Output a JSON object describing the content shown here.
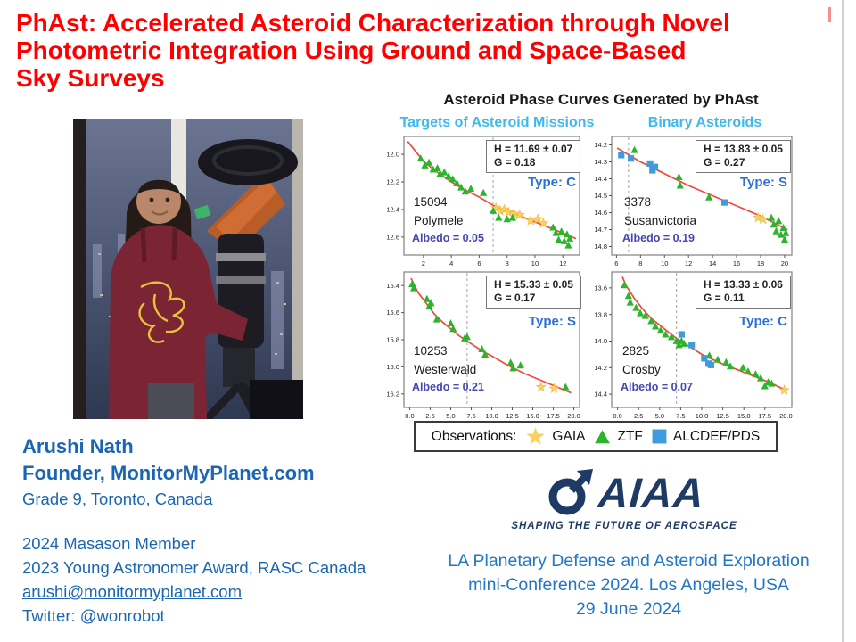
{
  "slide": {
    "title_lines": [
      "PhAst: Accelerated Asteroid Characterization through Novel",
      "Photometric Integration Using Ground and Space-Based",
      "Sky Surveys"
    ],
    "title_color": "#ff0000"
  },
  "author": {
    "name": "Arushi Nath",
    "role": "Founder, MonitorMyPlanet.com",
    "grade": "Grade 9, Toronto, Canada",
    "award_1": "2024 Masason Member",
    "award_2": "2023 Young Astronomer Award, RASC Canada",
    "email": "arushi@monitormyplanet.com",
    "twitter": "Twitter: @wonrobot",
    "text_color": "#1b66b3"
  },
  "charts": {
    "heading": "Asteroid Phase Curves Generated by PhAst",
    "column_left": "Targets of Asteroid Missions",
    "column_right": "Binary Asteroids",
    "column_color": "#3db9ef",
    "legend": {
      "label": "Observations:",
      "items": [
        {
          "label": "GAIA",
          "marker": "star"
        },
        {
          "label": "ZTF",
          "marker": "triangle"
        },
        {
          "label": "ALCDEF/PDS",
          "marker": "square"
        }
      ]
    }
  },
  "chart_data": {
    "type": "scatter",
    "colors": {
      "fit": "#f04a3e",
      "gaia": "#fad05f",
      "gaia_stroke": "#e9b83f",
      "ztf": "#2cb52c",
      "alcdef": "#3e9bdc",
      "dashed": "#ababab",
      "frame": "#8a8a8a"
    },
    "panels": [
      {
        "name_line1": "15094",
        "name_line2": "Polymele",
        "albedo_label": "Albedo = 0.05",
        "h_label": "H = 11.69 ± 0.07",
        "g_label": "G = 0.18",
        "type_label": "Type: C",
        "xlim": [
          0.6,
          13.2
        ],
        "ylim": [
          11.87,
          12.73
        ],
        "xticks": [
          2,
          4,
          6,
          8,
          10,
          12
        ],
        "xtick_decimals": 0,
        "yticks": [
          12.0,
          12.2,
          12.4,
          12.6
        ],
        "dash_x": 7,
        "curve": [
          [
            0.9,
            11.91
          ],
          [
            2,
            12.05
          ],
          [
            3,
            12.13
          ],
          [
            4,
            12.2
          ],
          [
            5,
            12.26
          ],
          [
            6,
            12.31
          ],
          [
            7,
            12.37
          ],
          [
            8,
            12.41
          ],
          [
            9,
            12.45
          ],
          [
            10,
            12.49
          ],
          [
            11,
            12.53
          ],
          [
            12,
            12.57
          ],
          [
            12.9,
            12.61
          ]
        ],
        "series": [
          {
            "name": "GAIA",
            "marker": "star",
            "points": [
              [
                7.2,
                12.39
              ],
              [
                7.5,
                12.41
              ],
              [
                7.8,
                12.4
              ],
              [
                8.1,
                12.42
              ],
              [
                8.5,
                12.43
              ],
              [
                8.9,
                12.44
              ],
              [
                9.7,
                12.48
              ],
              [
                10.2,
                12.47
              ],
              [
                10.6,
                12.5
              ]
            ]
          },
          {
            "name": "ZTF",
            "marker": "triangle",
            "points": [
              [
                1.8,
                12.03
              ],
              [
                2.1,
                12.08
              ],
              [
                2.4,
                12.06
              ],
              [
                2.7,
                12.11
              ],
              [
                3.0,
                12.1
              ],
              [
                3.2,
                12.14
              ],
              [
                3.5,
                12.13
              ],
              [
                3.8,
                12.16
              ],
              [
                4.1,
                12.18
              ],
              [
                4.4,
                12.21
              ],
              [
                4.7,
                12.24
              ],
              [
                5.0,
                12.27
              ],
              [
                5.4,
                12.25
              ],
              [
                6.3,
                12.28
              ],
              [
                7.0,
                12.41
              ],
              [
                7.4,
                12.46
              ],
              [
                8.0,
                12.47
              ],
              [
                8.4,
                12.46
              ],
              [
                11.3,
                12.53
              ],
              [
                11.5,
                12.57
              ],
              [
                11.7,
                12.62
              ],
              [
                11.9,
                12.56
              ],
              [
                12.1,
                12.63
              ],
              [
                12.3,
                12.58
              ],
              [
                12.4,
                12.66
              ],
              [
                12.5,
                12.61
              ]
            ]
          }
        ]
      },
      {
        "name_line1": "3378",
        "name_line2": "Susanvictoria",
        "albedo_label": "Albedo = 0.19",
        "h_label": "H = 13.83 ± 0.05",
        "g_label": "G = 0.27",
        "type_label": "Type: S",
        "xlim": [
          5.6,
          20.6
        ],
        "ylim": [
          14.15,
          14.85
        ],
        "xticks": [
          6,
          8,
          10,
          12,
          14,
          16,
          18,
          20
        ],
        "xtick_decimals": 0,
        "yticks": [
          14.2,
          14.3,
          14.4,
          14.5,
          14.6,
          14.7,
          14.8
        ],
        "dash_x": 7,
        "curve": [
          [
            6.1,
            14.22
          ],
          [
            8,
            14.3
          ],
          [
            10,
            14.37
          ],
          [
            12,
            14.44
          ],
          [
            14,
            14.5
          ],
          [
            16,
            14.56
          ],
          [
            18,
            14.62
          ],
          [
            20.2,
            14.7
          ]
        ],
        "series": [
          {
            "name": "GAIA",
            "marker": "star",
            "points": [
              [
                17.8,
                14.63
              ],
              [
                18.2,
                14.64
              ]
            ]
          },
          {
            "name": "ZTF",
            "marker": "triangle",
            "points": [
              [
                7.5,
                14.23
              ],
              [
                11.2,
                14.39
              ],
              [
                11.3,
                14.44
              ],
              [
                13.7,
                14.51
              ],
              [
                18.9,
                14.63
              ],
              [
                19.1,
                14.67
              ],
              [
                19.3,
                14.71
              ],
              [
                19.5,
                14.65
              ],
              [
                19.7,
                14.73
              ],
              [
                19.9,
                14.69
              ],
              [
                20.0,
                14.76
              ],
              [
                20.1,
                14.72
              ]
            ]
          },
          {
            "name": "ALCDEF/PDS",
            "marker": "square",
            "points": [
              [
                6.4,
                14.26
              ],
              [
                7.2,
                14.28
              ],
              [
                8.8,
                14.31
              ],
              [
                9.0,
                14.35
              ],
              [
                9.2,
                14.33
              ],
              [
                15.0,
                14.54
              ]
            ]
          }
        ]
      },
      {
        "name_line1": "10253",
        "name_line2": "Westerwald",
        "albedo_label": "Albedo = 0.21",
        "h_label": "H = 15.33 ± 0.05",
        "g_label": "G = 0.17",
        "type_label": "Type: S",
        "xlim": [
          -0.7,
          20.7
        ],
        "ylim": [
          15.3,
          16.3
        ],
        "xticks": [
          0,
          2.5,
          5,
          7.5,
          10,
          12.5,
          15,
          17.5,
          20
        ],
        "xtick_decimals": 1,
        "yticks": [
          15.4,
          15.6,
          15.8,
          16.0,
          16.2
        ],
        "dash_x": 7,
        "curve": [
          [
            0.2,
            15.35
          ],
          [
            1,
            15.45
          ],
          [
            2,
            15.53
          ],
          [
            3,
            15.61
          ],
          [
            4,
            15.67
          ],
          [
            5,
            15.72
          ],
          [
            6,
            15.77
          ],
          [
            7,
            15.81
          ],
          [
            8,
            15.85
          ],
          [
            9,
            15.89
          ],
          [
            10,
            15.92
          ],
          [
            12,
            15.99
          ],
          [
            14,
            16.05
          ],
          [
            16,
            16.1
          ],
          [
            18,
            16.15
          ],
          [
            19.6,
            16.19
          ]
        ],
        "series": [
          {
            "name": "GAIA",
            "marker": "star",
            "points": [
              [
                16.0,
                16.15
              ],
              [
                17.6,
                16.16
              ]
            ]
          },
          {
            "name": "ZTF",
            "marker": "triangle",
            "points": [
              [
                0.3,
                15.39
              ],
              [
                0.5,
                15.42
              ],
              [
                2.1,
                15.5
              ],
              [
                2.4,
                15.55
              ],
              [
                2.6,
                15.53
              ],
              [
                3.3,
                15.65
              ],
              [
                5.0,
                15.68
              ],
              [
                5.3,
                15.72
              ],
              [
                6.7,
                15.79
              ],
              [
                7.0,
                15.78
              ],
              [
                8.8,
                15.87
              ],
              [
                9.2,
                15.91
              ],
              [
                12.3,
                15.97
              ],
              [
                12.6,
                16.01
              ],
              [
                13.5,
                15.99
              ],
              [
                19.0,
                16.15
              ]
            ]
          }
        ]
      },
      {
        "name_line1": "2825",
        "name_line2": "Crosby",
        "albedo_label": "Albedo = 0.07",
        "h_label": "H = 13.33 ± 0.06",
        "g_label": "G = 0.11",
        "type_label": "Type: C",
        "xlim": [
          -0.7,
          20.7
        ],
        "ylim": [
          13.48,
          14.5
        ],
        "xticks": [
          0,
          2.5,
          5,
          7.5,
          10,
          12.5,
          15,
          17.5,
          20
        ],
        "xtick_decimals": 1,
        "yticks": [
          13.6,
          13.8,
          14.0,
          14.2,
          14.4
        ],
        "dash_x": 7,
        "curve": [
          [
            0.6,
            13.52
          ],
          [
            1,
            13.58
          ],
          [
            2,
            13.68
          ],
          [
            3,
            13.76
          ],
          [
            4,
            13.83
          ],
          [
            5,
            13.88
          ],
          [
            6,
            13.93
          ],
          [
            7,
            13.98
          ],
          [
            8,
            14.02
          ],
          [
            9,
            14.06
          ],
          [
            10,
            14.1
          ],
          [
            12,
            14.16
          ],
          [
            14,
            14.21
          ],
          [
            16,
            14.26
          ],
          [
            18,
            14.31
          ],
          [
            20,
            14.37
          ]
        ],
        "series": [
          {
            "name": "GAIA",
            "marker": "star",
            "points": [
              [
                19.8,
                14.37
              ]
            ]
          },
          {
            "name": "ZTF",
            "marker": "triangle",
            "points": [
              [
                0.8,
                13.58
              ],
              [
                1.3,
                13.66
              ],
              [
                1.5,
                13.71
              ],
              [
                2.2,
                13.75
              ],
              [
                2.7,
                13.79
              ],
              [
                3.3,
                13.81
              ],
              [
                4.0,
                13.85
              ],
              [
                4.5,
                13.89
              ],
              [
                5.1,
                13.92
              ],
              [
                5.7,
                13.95
              ],
              [
                6.4,
                13.97
              ],
              [
                7.0,
                14.0
              ],
              [
                7.3,
                14.03
              ],
              [
                7.6,
                14.0
              ],
              [
                7.9,
                14.02
              ],
              [
                10.9,
                14.11
              ],
              [
                11.9,
                14.14
              ],
              [
                12.9,
                14.16
              ],
              [
                13.4,
                14.19
              ],
              [
                14.9,
                14.2
              ],
              [
                15.5,
                14.23
              ],
              [
                16.4,
                14.25
              ],
              [
                17.0,
                14.28
              ],
              [
                17.5,
                14.34
              ],
              [
                17.9,
                14.31
              ],
              [
                18.3,
                14.32
              ]
            ]
          },
          {
            "name": "ALCDEF/PDS",
            "marker": "square",
            "points": [
              [
                7.6,
                13.95
              ],
              [
                8.8,
                14.03
              ],
              [
                10.3,
                14.13
              ],
              [
                10.8,
                14.17
              ],
              [
                11.1,
                14.18
              ]
            ]
          }
        ]
      }
    ]
  },
  "aiaa": {
    "wordmark": "AIAA",
    "tagline": "SHAPING THE FUTURE OF AEROSPACE",
    "navy": "#203a66"
  },
  "conference": {
    "line1": "LA Planetary Defense and Asteroid Exploration",
    "line2": "mini-Conference 2024. Los Angeles, USA",
    "line3": "29 June 2024",
    "text_color": "#2176c7"
  }
}
